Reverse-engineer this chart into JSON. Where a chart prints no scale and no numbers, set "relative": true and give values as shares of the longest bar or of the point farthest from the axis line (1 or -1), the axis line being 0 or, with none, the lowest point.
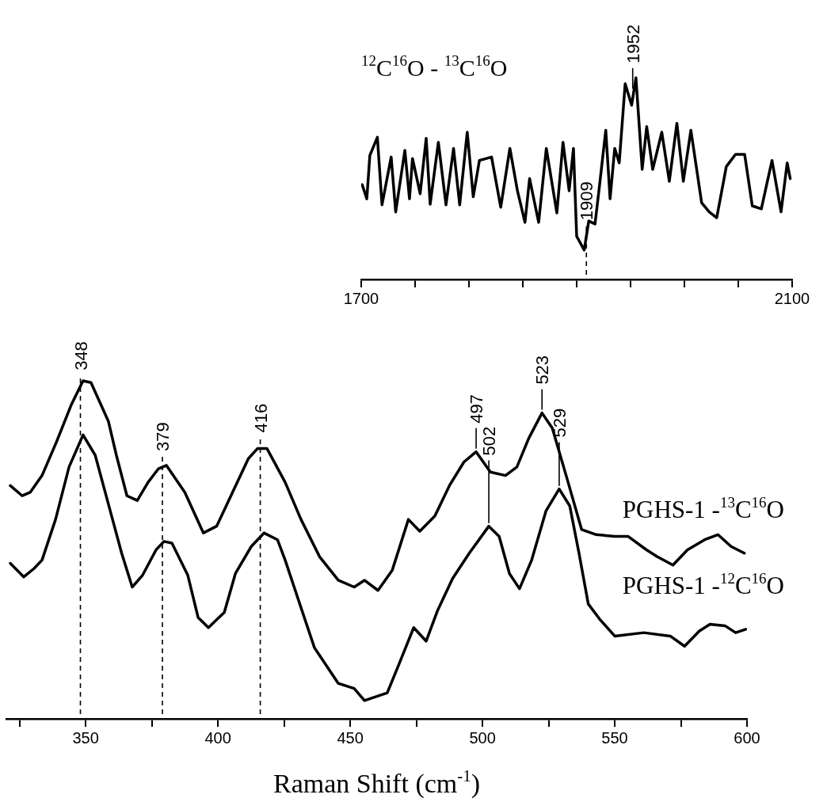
{
  "chart_data": [
    {
      "type": "line",
      "relative": true,
      "xlabel": "Raman Shift (cm$^{-1}$)",
      "xlim": [
        320,
        600
      ],
      "xticks": [
        {
          "value": 325,
          "label": null
        },
        350,
        {
          "value": 375,
          "label": null
        },
        400,
        {
          "value": 425,
          "label": null
        },
        450,
        {
          "value": 475,
          "label": null
        },
        500,
        {
          "value": 525,
          "label": null
        },
        550,
        {
          "value": 575,
          "label": null
        },
        600
      ],
      "marker": "none",
      "legend": false,
      "ref_lines": [
        {
          "axis": "x",
          "value": 348,
          "label": "348",
          "line_style": "dashed"
        },
        {
          "axis": "x",
          "value": 379,
          "label": "379",
          "line_style": "dashed"
        },
        {
          "axis": "x",
          "value": 416,
          "label": "416",
          "line_style": "dashed"
        }
      ],
      "annotations": [
        {
          "text": "497",
          "x": 497.6,
          "y": 0.79
        },
        {
          "text": "523",
          "x": 522.5,
          "y": 0.905
        },
        {
          "text": "502",
          "x": 502.4,
          "y": 0.57
        },
        {
          "text": "529",
          "x": 529,
          "y": 0.68
        }
      ],
      "series": [
        {
          "name": "PGHS-1 -$^{13}$C$^{16}$O",
          "color": "#000000",
          "x": [
            321.5,
            326,
            329,
            333.5,
            339,
            344.6,
            349,
            352,
            358.6,
            361.6,
            365.6,
            369.5,
            373.6,
            377.5,
            380.5,
            387.5,
            394.5,
            399.5,
            405.5,
            411.5,
            415,
            418.5,
            425.4,
            431.4,
            438.4,
            445.5,
            451.5,
            455.4,
            460.5,
            465.9,
            472,
            476.3,
            482,
            487.5,
            493,
            497.6,
            503,
            508.7,
            513,
            517.5,
            522.5,
            526.4,
            532,
            537.5,
            543,
            550,
            555,
            562,
            566,
            572,
            577.5,
            584,
            589,
            594,
            599
          ],
          "values": [
            0.69,
            0.66,
            0.67,
            0.72,
            0.82,
            0.93,
            1.0,
            0.995,
            0.88,
            0.78,
            0.66,
            0.646,
            0.7,
            0.74,
            0.75,
            0.67,
            0.55,
            0.57,
            0.67,
            0.77,
            0.8,
            0.8,
            0.7,
            0.59,
            0.48,
            0.41,
            0.39,
            0.41,
            0.38,
            0.44,
            0.59,
            0.555,
            0.6,
            0.69,
            0.76,
            0.79,
            0.73,
            0.72,
            0.745,
            0.83,
            0.905,
            0.86,
            0.71,
            0.56,
            0.545,
            0.54,
            0.54,
            0.5,
            0.48,
            0.455,
            0.5,
            0.53,
            0.545,
            0.51,
            0.49
          ]
        },
        {
          "name": "PGHS-1 -$^{12}$C$^{16}$O",
          "color": "#000000",
          "x": [
            321.5,
            326.6,
            330.5,
            333.5,
            338.6,
            343.7,
            349,
            353.6,
            358.6,
            363.6,
            367.6,
            371.5,
            376.6,
            379.6,
            382.6,
            388.6,
            392.5,
            396.4,
            402.4,
            406.6,
            412.6,
            417.4,
            422.5,
            425.4,
            430.5,
            436.5,
            445.5,
            451.5,
            455.4,
            464,
            468.6,
            474,
            478.7,
            483,
            488.7,
            495,
            502.4,
            506.3,
            510.2,
            514,
            518.6,
            524,
            529,
            533,
            536.5,
            540,
            544.3,
            550,
            561,
            571,
            576.4,
            582,
            586,
            591.8,
            595.7,
            599.5
          ],
          "values": [
            0.46,
            0.42,
            0.445,
            0.47,
            0.59,
            0.745,
            0.84,
            0.78,
            0.635,
            0.49,
            0.39,
            0.425,
            0.5,
            0.525,
            0.52,
            0.425,
            0.3,
            0.27,
            0.315,
            0.43,
            0.51,
            0.55,
            0.53,
            0.47,
            0.35,
            0.21,
            0.105,
            0.09,
            0.054,
            0.077,
            0.165,
            0.27,
            0.23,
            0.32,
            0.415,
            0.49,
            0.57,
            0.54,
            0.43,
            0.385,
            0.47,
            0.615,
            0.68,
            0.63,
            0.49,
            0.34,
            0.295,
            0.245,
            0.255,
            0.245,
            0.215,
            0.26,
            0.28,
            0.275,
            0.255,
            0.265
          ]
        }
      ]
    },
    {
      "type": "line",
      "relative": true,
      "title": "$^{12}$C$^{16}$O - $^{13}$C$^{16}$O",
      "xlim": [
        1700,
        2100
      ],
      "xticks": [
        1700,
        {
          "value": 1750,
          "label": null
        },
        {
          "value": 1800,
          "label": null
        },
        {
          "value": 1850,
          "label": null
        },
        {
          "value": 1900,
          "label": null
        },
        {
          "value": 1950,
          "label": null
        },
        {
          "value": 2000,
          "label": null
        },
        {
          "value": 2050,
          "label": null
        },
        2100
      ],
      "marker": "none",
      "legend": false,
      "ref_lines": [
        {
          "axis": "x",
          "value": 1909,
          "label": "1909",
          "line_style": "dashed"
        }
      ],
      "annotations": [
        {
          "text": "1952",
          "x": 1952,
          "y": 0.93
        }
      ],
      "series": [
        {
          "color": "#000000",
          "x": [
            1700.9,
            1705.2,
            1708,
            1715,
            1719.3,
            1727.8,
            1732,
            1740.5,
            1744.8,
            1747.6,
            1754.7,
            1760.3,
            1764,
            1771.6,
            1778.7,
            1785.7,
            1791.4,
            1798.4,
            1804,
            1809.7,
            1821,
            1829.5,
            1838,
            1845,
            1852,
            1856.3,
            1864.7,
            1871.8,
            1881.6,
            1887.3,
            1893,
            1897,
            1900,
            1907,
            1911.2,
            1917,
            1921,
            1927,
            1931,
            1935.3,
            1939.5,
            1945,
            1951,
            1955,
            1960.8,
            1965,
            1970.6,
            1979,
            1986,
            1993,
            1999,
            2006,
            2016,
            2023,
            2030,
            2038.9,
            2047.4,
            2055.9,
            2063,
            2071.4,
            2081.3,
            2089.7,
            2095.4,
            2098.2
          ],
          "values": [
            0.47,
            0.4,
            0.615,
            0.705,
            0.37,
            0.607,
            0.335,
            0.64,
            0.4,
            0.6,
            0.425,
            0.7,
            0.373,
            0.68,
            0.37,
            0.65,
            0.37,
            0.73,
            0.41,
            0.59,
            0.607,
            0.358,
            0.65,
            0.44,
            0.283,
            0.5,
            0.283,
            0.65,
            0.33,
            0.68,
            0.44,
            0.65,
            0.214,
            0.146,
            0.29,
            0.275,
            0.456,
            0.74,
            0.4,
            0.65,
            0.578,
            0.97,
            0.864,
            1.0,
            0.546,
            0.758,
            0.546,
            0.73,
            0.487,
            0.774,
            0.487,
            0.74,
            0.38,
            0.335,
            0.306,
            0.56,
            0.62,
            0.62,
            0.365,
            0.35,
            0.59,
            0.335,
            0.578,
            0.5
          ]
        }
      ]
    }
  ]
}
